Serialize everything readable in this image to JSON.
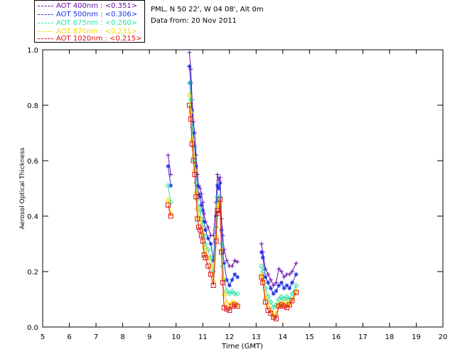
{
  "chart_data": {
    "type": "line",
    "title_lines": [
      "PML, N 50 22', W 04 08', Alt 0m",
      "Data from: 20 Nov 2011"
    ],
    "xlabel": "Time (GMT)",
    "ylabel": "Aerosol Optical Thickness",
    "xlim": [
      5,
      20
    ],
    "ylim": [
      0.0,
      1.0
    ],
    "xticks": [
      5,
      6,
      7,
      8,
      9,
      10,
      11,
      12,
      13,
      14,
      15,
      16,
      17,
      18,
      19,
      20
    ],
    "yticks": [
      "0.0",
      "0.2",
      "0.4",
      "0.6",
      "0.8",
      "1.0"
    ],
    "legend_placement": "top-left",
    "series": [
      {
        "name": "AOT  400nm : <0.351>",
        "color": "#6a0dad",
        "marker": "plus",
        "segments": [
          [
            [
              9.7,
              0.62
            ],
            [
              9.8,
              0.55
            ]
          ],
          [
            [
              10.5,
              0.99
            ],
            [
              10.55,
              0.93
            ],
            [
              10.6,
              0.82
            ],
            [
              10.65,
              0.74
            ],
            [
              10.7,
              0.7
            ],
            [
              10.75,
              0.62
            ],
            [
              10.8,
              0.55
            ],
            [
              10.85,
              0.51
            ],
            [
              10.9,
              0.5
            ],
            [
              10.95,
              0.48
            ],
            [
              11.0,
              0.45
            ],
            [
              11.05,
              0.41
            ],
            [
              11.1,
              0.38
            ],
            [
              11.2,
              0.36
            ],
            [
              11.3,
              0.33
            ],
            [
              11.4,
              0.33
            ],
            [
              11.5,
              0.45
            ],
            [
              11.55,
              0.55
            ],
            [
              11.6,
              0.53
            ],
            [
              11.65,
              0.54
            ],
            [
              11.7,
              0.39
            ],
            [
              11.75,
              0.33
            ],
            [
              11.8,
              0.28
            ],
            [
              11.9,
              0.24
            ],
            [
              12.0,
              0.22
            ],
            [
              12.1,
              0.22
            ],
            [
              12.2,
              0.24
            ],
            [
              12.3,
              0.235
            ]
          ],
          [
            [
              13.2,
              0.3
            ],
            [
              13.25,
              0.27
            ],
            [
              13.35,
              0.21
            ],
            [
              13.45,
              0.19
            ],
            [
              13.55,
              0.17
            ],
            [
              13.65,
              0.15
            ],
            [
              13.75,
              0.16
            ],
            [
              13.85,
              0.21
            ],
            [
              13.95,
              0.2
            ],
            [
              14.05,
              0.18
            ],
            [
              14.15,
              0.19
            ],
            [
              14.25,
              0.19
            ],
            [
              14.35,
              0.2
            ],
            [
              14.5,
              0.23
            ]
          ]
        ]
      },
      {
        "name": "AOT  500nm : <0.306>",
        "color": "#1a33e6",
        "marker": "star",
        "segments": [
          [
            [
              9.7,
              0.58
            ],
            [
              9.8,
              0.51
            ]
          ],
          [
            [
              10.5,
              0.94
            ],
            [
              10.55,
              0.88
            ],
            [
              10.6,
              0.78
            ],
            [
              10.65,
              0.7
            ],
            [
              10.7,
              0.65
            ],
            [
              10.75,
              0.58
            ],
            [
              10.8,
              0.51
            ],
            [
              10.85,
              0.48
            ],
            [
              10.9,
              0.47
            ],
            [
              10.95,
              0.44
            ],
            [
              11.0,
              0.42
            ],
            [
              11.05,
              0.38
            ],
            [
              11.1,
              0.35
            ],
            [
              11.2,
              0.32
            ],
            [
              11.3,
              0.3
            ],
            [
              11.4,
              0.24
            ],
            [
              11.5,
              0.4
            ],
            [
              11.55,
              0.51
            ],
            [
              11.6,
              0.5
            ],
            [
              11.65,
              0.52
            ],
            [
              11.7,
              0.35
            ],
            [
              11.75,
              0.27
            ],
            [
              11.8,
              0.23
            ],
            [
              11.9,
              0.17
            ],
            [
              12.0,
              0.15
            ],
            [
              12.1,
              0.17
            ],
            [
              12.2,
              0.19
            ],
            [
              12.3,
              0.18
            ]
          ],
          [
            [
              13.2,
              0.27
            ],
            [
              13.25,
              0.25
            ],
            [
              13.35,
              0.18
            ],
            [
              13.45,
              0.16
            ],
            [
              13.55,
              0.14
            ],
            [
              13.65,
              0.12
            ],
            [
              13.75,
              0.13
            ],
            [
              13.85,
              0.15
            ],
            [
              13.95,
              0.16
            ],
            [
              14.05,
              0.14
            ],
            [
              14.15,
              0.15
            ],
            [
              14.25,
              0.14
            ],
            [
              14.35,
              0.16
            ],
            [
              14.5,
              0.19
            ]
          ]
        ]
      },
      {
        "name": "AOT  675nm : <0.260>",
        "color": "#2ee0a6",
        "marker": "diamond",
        "segments": [
          [
            [
              9.7,
              0.51
            ],
            [
              9.8,
              0.45
            ]
          ],
          [
            [
              10.5,
              0.88
            ],
            [
              10.55,
              0.82
            ],
            [
              10.6,
              0.72
            ],
            [
              10.65,
              0.65
            ],
            [
              10.7,
              0.6
            ],
            [
              10.75,
              0.52
            ],
            [
              10.8,
              0.46
            ],
            [
              10.85,
              0.43
            ],
            [
              10.9,
              0.42
            ],
            [
              10.95,
              0.39
            ],
            [
              11.0,
              0.37
            ],
            [
              11.05,
              0.33
            ],
            [
              11.1,
              0.3
            ],
            [
              11.2,
              0.28
            ],
            [
              11.3,
              0.25
            ],
            [
              11.4,
              0.2
            ],
            [
              11.5,
              0.36
            ],
            [
              11.55,
              0.47
            ],
            [
              11.6,
              0.45
            ],
            [
              11.65,
              0.47
            ],
            [
              11.7,
              0.3
            ],
            [
              11.75,
              0.22
            ],
            [
              11.8,
              0.17
            ],
            [
              11.9,
              0.13
            ],
            [
              12.0,
              0.12
            ],
            [
              12.1,
              0.13
            ],
            [
              12.2,
              0.12
            ],
            [
              12.3,
              0.12
            ]
          ],
          [
            [
              13.2,
              0.22
            ],
            [
              13.25,
              0.2
            ],
            [
              13.35,
              0.14
            ],
            [
              13.45,
              0.11
            ],
            [
              13.55,
              0.09
            ],
            [
              13.65,
              0.07
            ],
            [
              13.75,
              0.08
            ],
            [
              13.85,
              0.1
            ],
            [
              13.95,
              0.11
            ],
            [
              14.05,
              0.1
            ],
            [
              14.15,
              0.11
            ],
            [
              14.25,
              0.1
            ],
            [
              14.35,
              0.12
            ],
            [
              14.5,
              0.15
            ]
          ]
        ]
      },
      {
        "name": "AOT  870nm : <0.231>",
        "color": "#ffd700",
        "marker": "triangle",
        "segments": [
          [
            [
              9.7,
              0.46
            ],
            [
              9.8,
              0.41
            ]
          ],
          [
            [
              10.5,
              0.84
            ],
            [
              10.55,
              0.78
            ],
            [
              10.6,
              0.68
            ],
            [
              10.65,
              0.62
            ],
            [
              10.7,
              0.57
            ],
            [
              10.75,
              0.49
            ],
            [
              10.8,
              0.43
            ],
            [
              10.85,
              0.4
            ],
            [
              10.9,
              0.39
            ],
            [
              10.95,
              0.36
            ],
            [
              11.0,
              0.34
            ],
            [
              11.05,
              0.29
            ],
            [
              11.1,
              0.27
            ],
            [
              11.2,
              0.25
            ],
            [
              11.3,
              0.22
            ],
            [
              11.4,
              0.17
            ],
            [
              11.5,
              0.33
            ],
            [
              11.55,
              0.44
            ],
            [
              11.6,
              0.43
            ],
            [
              11.65,
              0.45
            ],
            [
              11.7,
              0.28
            ],
            [
              11.75,
              0.18
            ],
            [
              11.8,
              0.12
            ],
            [
              11.9,
              0.09
            ],
            [
              12.0,
              0.08
            ],
            [
              12.1,
              0.09
            ],
            [
              12.2,
              0.09
            ],
            [
              12.3,
              0.08
            ]
          ],
          [
            [
              13.2,
              0.19
            ],
            [
              13.25,
              0.17
            ],
            [
              13.35,
              0.11
            ],
            [
              13.45,
              0.08
            ],
            [
              13.55,
              0.06
            ],
            [
              13.65,
              0.04
            ],
            [
              13.75,
              0.05
            ],
            [
              13.85,
              0.08
            ],
            [
              13.95,
              0.09
            ],
            [
              14.05,
              0.08
            ],
            [
              14.15,
              0.09
            ],
            [
              14.25,
              0.08
            ],
            [
              14.35,
              0.1
            ],
            [
              14.5,
              0.13
            ]
          ]
        ]
      },
      {
        "name": "AOT 1020nm : <0.215>",
        "color": "#dd1111",
        "marker": "square",
        "segments": [
          [
            [
              9.7,
              0.44
            ],
            [
              9.8,
              0.4
            ]
          ],
          [
            [
              10.5,
              0.8
            ],
            [
              10.55,
              0.75
            ],
            [
              10.6,
              0.66
            ],
            [
              10.65,
              0.6
            ],
            [
              10.7,
              0.55
            ],
            [
              10.75,
              0.47
            ],
            [
              10.8,
              0.39
            ],
            [
              10.85,
              0.36
            ],
            [
              10.9,
              0.35
            ],
            [
              10.95,
              0.33
            ],
            [
              11.0,
              0.31
            ],
            [
              11.05,
              0.26
            ],
            [
              11.1,
              0.25
            ],
            [
              11.2,
              0.22
            ],
            [
              11.3,
              0.19
            ],
            [
              11.4,
              0.15
            ],
            [
              11.5,
              0.31
            ],
            [
              11.55,
              0.42
            ],
            [
              11.6,
              0.41
            ],
            [
              11.65,
              0.46
            ],
            [
              11.7,
              0.27
            ],
            [
              11.75,
              0.16
            ],
            [
              11.8,
              0.07
            ],
            [
              11.9,
              0.065
            ],
            [
              12.0,
              0.06
            ],
            [
              12.1,
              0.075
            ],
            [
              12.2,
              0.08
            ],
            [
              12.3,
              0.075
            ]
          ],
          [
            [
              13.2,
              0.18
            ],
            [
              13.25,
              0.16
            ],
            [
              13.35,
              0.09
            ],
            [
              13.45,
              0.06
            ],
            [
              13.55,
              0.05
            ],
            [
              13.65,
              0.035
            ],
            [
              13.75,
              0.03
            ],
            [
              13.85,
              0.075
            ],
            [
              13.95,
              0.08
            ],
            [
              14.05,
              0.075
            ],
            [
              14.15,
              0.07
            ],
            [
              14.25,
              0.08
            ],
            [
              14.35,
              0.095
            ],
            [
              14.5,
              0.125
            ]
          ]
        ]
      }
    ]
  }
}
